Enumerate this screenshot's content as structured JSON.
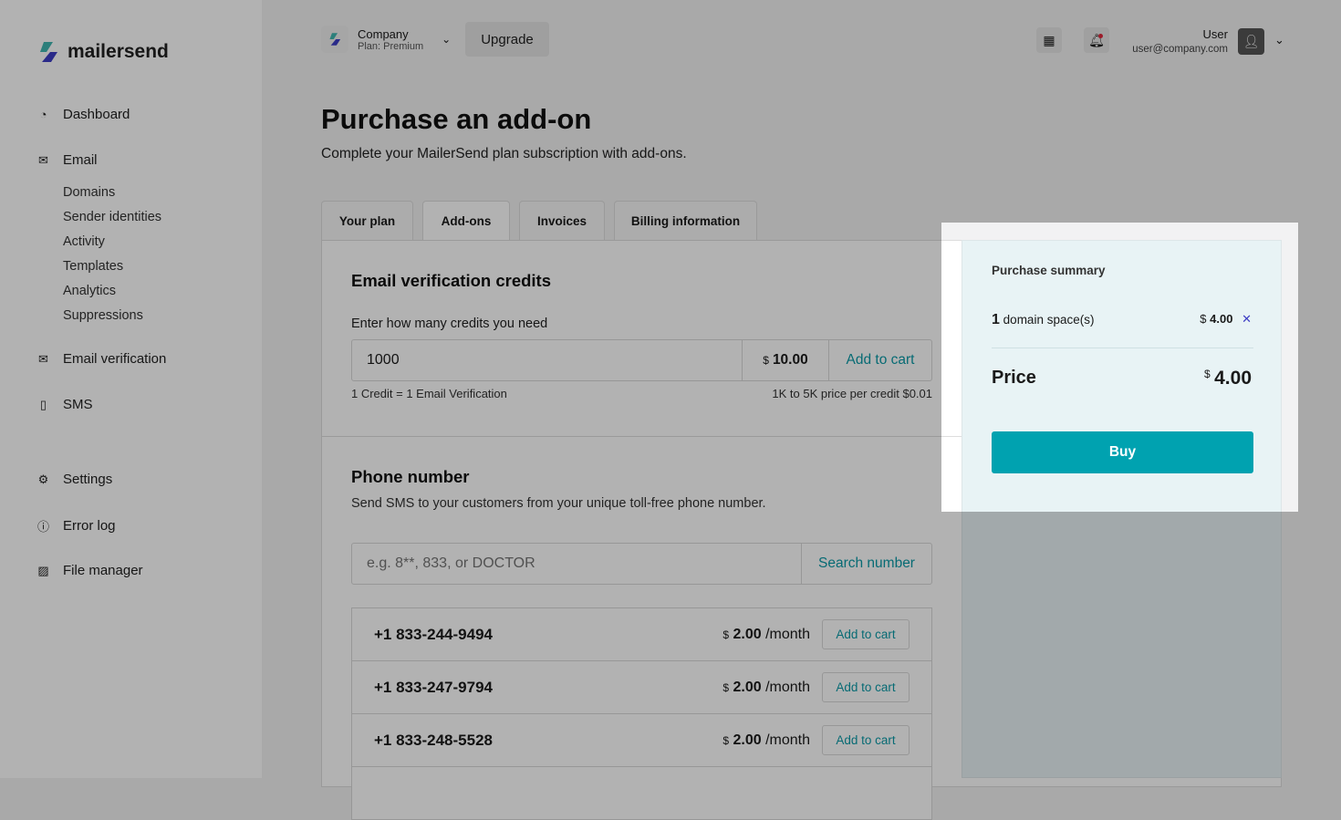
{
  "brand": {
    "name": "mailersend",
    "colors": {
      "accent": "#00a2b0",
      "link": "#0b9aa7"
    }
  },
  "sidebar": {
    "items": [
      {
        "label": "Dashboard",
        "icon": "pie-chart-icon"
      },
      {
        "label": "Email",
        "icon": "envelope-send-icon",
        "children": [
          "Domains",
          "Sender identities",
          "Activity",
          "Templates",
          "Analytics",
          "Suppressions"
        ]
      },
      {
        "label": "Email verification",
        "icon": "envelope-check-icon"
      },
      {
        "label": "SMS",
        "icon": "phone-icon"
      },
      {
        "label": "Settings",
        "icon": "gear-icon"
      },
      {
        "label": "Error log",
        "icon": "alert-circle-icon"
      },
      {
        "label": "File manager",
        "icon": "image-icon"
      }
    ]
  },
  "header": {
    "company": "Company",
    "plan": "Plan: Premium",
    "upgrade": "Upgrade",
    "user_name": "User",
    "user_email": "user@company.com"
  },
  "page": {
    "title": "Purchase an add-on",
    "subtitle": "Complete your MailerSend plan subscription with add-ons.",
    "tabs": [
      "Your plan",
      "Add-ons",
      "Invoices",
      "Billing information"
    ],
    "active_tab": "Add-ons"
  },
  "verification": {
    "title": "Email verification credits",
    "label": "Enter how many credits you need",
    "value": "1000",
    "currency": "$",
    "price": "10.00",
    "add": "Add to cart",
    "note_left": "1 Credit = 1 Email Verification",
    "note_right": "1K to 5K price per credit $0.01"
  },
  "phone": {
    "title": "Phone number",
    "desc": "Send SMS to your customers from your unique toll-free phone number.",
    "placeholder": "e.g. 8**, 833, or DOCTOR",
    "search": "Search number",
    "numbers": [
      {
        "number": "+1 833-244-9494",
        "currency": "$",
        "price": "2.00",
        "period": "/month",
        "add": "Add to cart"
      },
      {
        "number": "+1 833-247-9794",
        "currency": "$",
        "price": "2.00",
        "period": "/month",
        "add": "Add to cart"
      },
      {
        "number": "+1 833-248-5528",
        "currency": "$",
        "price": "2.00",
        "period": "/month",
        "add": "Add to cart"
      }
    ]
  },
  "summary": {
    "title": "Purchase summary",
    "qty": "1",
    "item": "domain space(s)",
    "currency": "$",
    "item_price": "4.00",
    "price_label": "Price",
    "total": "4.00",
    "buy": "Buy"
  }
}
